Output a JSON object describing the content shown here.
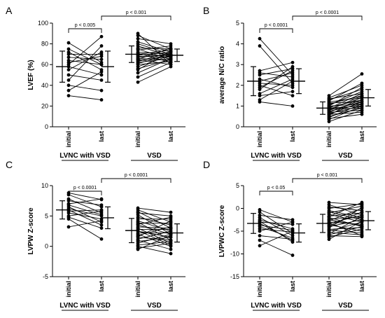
{
  "chart_data": [
    {
      "type": "scatter",
      "panel": "A",
      "ylabel": "LVEF (%)",
      "ylim": [
        0,
        100
      ],
      "yticks": [
        0,
        20,
        40,
        60,
        80,
        100
      ],
      "ytick_labels": [
        "0",
        "20",
        "40",
        "60",
        "80",
        "100"
      ],
      "categories": [
        "initial",
        "last",
        "initial",
        "last"
      ],
      "groups": [
        {
          "label": "LVNC with VSD"
        },
        {
          "label": "VSD"
        }
      ],
      "significance": [
        {
          "label": "p < 0.005"
        },
        {
          "label": "p < 0.001"
        }
      ],
      "group_stats": [
        {
          "initial": {
            "mean": 58,
            "sd": 15
          },
          "last": {
            "mean": 58,
            "sd": 15
          }
        },
        {
          "initial": {
            "mean": 70,
            "sd": 8
          },
          "last": {
            "mean": 69,
            "sd": 6
          }
        }
      ],
      "paired": [
        [
          [
            81,
            62
          ],
          [
            72,
            55
          ],
          [
            70,
            70
          ],
          [
            67,
            65
          ],
          [
            64,
            60
          ],
          [
            60,
            87
          ],
          [
            58,
            50
          ],
          [
            55,
            72
          ],
          [
            50,
            45
          ],
          [
            45,
            78
          ],
          [
            40,
            35
          ],
          [
            35,
            53
          ],
          [
            30,
            26
          ],
          [
            75,
            60
          ],
          [
            62,
            68
          ]
        ],
        [
          [
            90,
            60
          ],
          [
            88,
            75
          ],
          [
            85,
            80
          ],
          [
            82,
            72
          ],
          [
            80,
            70
          ],
          [
            78,
            68
          ],
          [
            76,
            75
          ],
          [
            75,
            65
          ],
          [
            74,
            78
          ],
          [
            72,
            70
          ],
          [
            71,
            62
          ],
          [
            70,
            74
          ],
          [
            70,
            68
          ],
          [
            69,
            72
          ],
          [
            68,
            67
          ],
          [
            67,
            70
          ],
          [
            66,
            64
          ],
          [
            65,
            76
          ],
          [
            65,
            60
          ],
          [
            64,
            68
          ],
          [
            63,
            72
          ],
          [
            62,
            66
          ],
          [
            61,
            70
          ],
          [
            60,
            63
          ],
          [
            58,
            69
          ],
          [
            56,
            65
          ],
          [
            55,
            73
          ],
          [
            52,
            66
          ],
          [
            48,
            62
          ],
          [
            43,
            58
          ]
        ]
      ]
    },
    {
      "type": "scatter",
      "panel": "B",
      "ylabel": "average N/C ratio",
      "ylim": [
        0,
        5
      ],
      "yticks": [
        0,
        1,
        2,
        3,
        4,
        5
      ],
      "ytick_labels": [
        "0",
        "1",
        "2",
        "3",
        "4",
        "5"
      ],
      "categories": [
        "initial",
        "last",
        "initial",
        "last"
      ],
      "groups": [
        {
          "label": "LVNC with VSD"
        },
        {
          "label": "VSD"
        }
      ],
      "significance": [
        {
          "label": "p < 0.0001"
        },
        {
          "label": "p < 0.0001"
        }
      ],
      "group_stats": [
        {
          "initial": {
            "mean": 2.2,
            "sd": 0.7
          },
          "last": {
            "mean": 2.2,
            "sd": 0.6
          }
        },
        {
          "initial": {
            "mean": 0.9,
            "sd": 0.3
          },
          "last": {
            "mean": 1.4,
            "sd": 0.4
          }
        }
      ],
      "paired": [
        [
          [
            4.25,
            2.5
          ],
          [
            3.9,
            2.1
          ],
          [
            2.7,
            3.1
          ],
          [
            2.5,
            2.8
          ],
          [
            2.3,
            1.9
          ],
          [
            2.2,
            2.6
          ],
          [
            2.1,
            2.0
          ],
          [
            2.0,
            1.5
          ],
          [
            1.8,
            2.9
          ],
          [
            1.6,
            2.3
          ],
          [
            1.5,
            1.7
          ],
          [
            1.3,
            2.2
          ],
          [
            1.2,
            1.0
          ],
          [
            2.6,
            2.4
          ],
          [
            1.9,
            2.7
          ]
        ],
        [
          [
            1.5,
            2.55
          ],
          [
            1.4,
            2.0
          ],
          [
            1.35,
            1.6
          ],
          [
            1.3,
            1.8
          ],
          [
            1.2,
            1.4
          ],
          [
            1.15,
            1.2
          ],
          [
            1.1,
            1.5
          ],
          [
            1.05,
            1.7
          ],
          [
            1.0,
            1.1
          ],
          [
            1.0,
            1.9
          ],
          [
            0.95,
            1.3
          ],
          [
            0.9,
            1.0
          ],
          [
            0.9,
            1.6
          ],
          [
            0.85,
            1.4
          ],
          [
            0.85,
            0.9
          ],
          [
            0.8,
            1.2
          ],
          [
            0.8,
            1.5
          ],
          [
            0.75,
            1.1
          ],
          [
            0.7,
            1.3
          ],
          [
            0.7,
            0.8
          ],
          [
            0.65,
            1.0
          ],
          [
            0.6,
            1.2
          ],
          [
            0.6,
            0.7
          ],
          [
            0.55,
            1.45
          ],
          [
            0.5,
            0.9
          ],
          [
            0.45,
            1.1
          ],
          [
            0.4,
            0.6
          ],
          [
            0.35,
            1.0
          ],
          [
            1.25,
            2.1
          ],
          [
            0.25,
            0.8
          ]
        ]
      ]
    },
    {
      "type": "scatter",
      "panel": "C",
      "ylabel": "LVPW Z-score",
      "ylim": [
        -5,
        10
      ],
      "yticks": [
        -5,
        0,
        5,
        10
      ],
      "ytick_labels": [
        "-5",
        "0",
        "5",
        "10"
      ],
      "categories": [
        "initial",
        "last",
        "initial",
        "last"
      ],
      "groups": [
        {
          "label": "LVNC with VSD"
        },
        {
          "label": "VSD"
        }
      ],
      "significance": [
        {
          "label": "p < 0.0001"
        },
        {
          "label": "p < 0.0001"
        }
      ],
      "group_stats": [
        {
          "initial": {
            "mean": 6.0,
            "sd": 1.5
          },
          "last": {
            "mean": 4.7,
            "sd": 1.8
          }
        },
        {
          "initial": {
            "mean": 2.6,
            "sd": 2.0
          },
          "last": {
            "mean": 2.2,
            "sd": 1.5
          }
        }
      ],
      "paired": [
        [
          [
            8.8,
            7.7
          ],
          [
            8.5,
            6.5
          ],
          [
            7.8,
            5.5
          ],
          [
            7.0,
            7.8
          ],
          [
            6.5,
            4.0
          ],
          [
            6.2,
            5.0
          ],
          [
            6.0,
            3.5
          ],
          [
            5.8,
            6.0
          ],
          [
            5.5,
            4.5
          ],
          [
            5.0,
            5.8
          ],
          [
            4.8,
            3.0
          ],
          [
            4.5,
            1.2
          ],
          [
            3.2,
            4.2
          ],
          [
            7.5,
            6.8
          ],
          [
            6.8,
            5.2
          ]
        ],
        [
          [
            6.3,
            5.6
          ],
          [
            6.0,
            4.0
          ],
          [
            5.7,
            3.0
          ],
          [
            5.5,
            5.0
          ],
          [
            5.2,
            2.0
          ],
          [
            4.8,
            3.5
          ],
          [
            4.5,
            4.5
          ],
          [
            4.2,
            2.5
          ],
          [
            4.0,
            1.0
          ],
          [
            3.8,
            3.8
          ],
          [
            3.5,
            2.0
          ],
          [
            3.2,
            3.0
          ],
          [
            3.0,
            0.5
          ],
          [
            2.8,
            2.8
          ],
          [
            2.5,
            1.5
          ],
          [
            2.2,
            2.2
          ],
          [
            2.0,
            0.0
          ],
          [
            1.8,
            3.2
          ],
          [
            1.5,
            1.0
          ],
          [
            1.2,
            2.5
          ],
          [
            1.0,
            -0.5
          ],
          [
            0.8,
            1.5
          ],
          [
            0.5,
            2.0
          ],
          [
            0.2,
            0.8
          ],
          [
            0.0,
            -1.2
          ],
          [
            -0.3,
            0.5
          ],
          [
            -0.5,
            1.8
          ],
          [
            3.6,
            4.8
          ],
          [
            2.6,
            0.2
          ],
          [
            1.6,
            4.2
          ]
        ]
      ]
    },
    {
      "type": "scatter",
      "panel": "D",
      "ylabel": "LVPWC Z-score",
      "ylim": [
        -15,
        5
      ],
      "yticks": [
        -15,
        -10,
        -5,
        0,
        5
      ],
      "ytick_labels": [
        "-15",
        "-10",
        "-5",
        "0",
        "5"
      ],
      "categories": [
        "initial",
        "last",
        "initial",
        "last"
      ],
      "groups": [
        {
          "label": "LVNC with VSD"
        },
        {
          "label": "VSD"
        }
      ],
      "significance": [
        {
          "label": "p < 0.05"
        },
        {
          "label": "p < 0.001"
        }
      ],
      "group_stats": [
        {
          "initial": {
            "mean": -3.3,
            "sd": 2.2
          },
          "last": {
            "mean": -5.4,
            "sd": 2.0
          }
        },
        {
          "initial": {
            "mean": -3.3,
            "sd": 2.0
          },
          "last": {
            "mean": -2.7,
            "sd": 2.0
          }
        }
      ],
      "paired": [
        [
          [
            -0.3,
            -3.0
          ],
          [
            -0.8,
            -5.5
          ],
          [
            -1.5,
            -2.5
          ],
          [
            -2.0,
            -6.0
          ],
          [
            -2.5,
            -4.5
          ],
          [
            -3.0,
            -3.5
          ],
          [
            -3.3,
            -7.0
          ],
          [
            -3.7,
            -4.8
          ],
          [
            -4.0,
            -6.5
          ],
          [
            -4.5,
            -5.2
          ],
          [
            -5.0,
            -3.0
          ],
          [
            -6.0,
            -6.8
          ],
          [
            -7.0,
            -10.3
          ],
          [
            -8.2,
            -5.0
          ],
          [
            -2.8,
            -7.4
          ]
        ],
        [
          [
            1.3,
            0.8
          ],
          [
            0.8,
            -1.5
          ],
          [
            0.3,
            -0.5
          ],
          [
            0.0,
            1.0
          ],
          [
            -0.5,
            -2.0
          ],
          [
            -1.0,
            0.5
          ],
          [
            -1.3,
            -3.0
          ],
          [
            -1.7,
            -1.0
          ],
          [
            -2.0,
            -4.0
          ],
          [
            -2.3,
            -2.0
          ],
          [
            -2.7,
            0.0
          ],
          [
            -3.0,
            -3.5
          ],
          [
            -3.3,
            -1.5
          ],
          [
            -3.6,
            -5.0
          ],
          [
            -4.0,
            -2.5
          ],
          [
            -4.3,
            0.2
          ],
          [
            -4.6,
            -4.2
          ],
          [
            -5.0,
            -3.0
          ],
          [
            -5.3,
            -5.8
          ],
          [
            -5.6,
            -1.8
          ],
          [
            -6.0,
            -6.2
          ],
          [
            -6.3,
            -4.5
          ],
          [
            -6.8,
            -2.8
          ],
          [
            -2.5,
            -3.8
          ],
          [
            -1.8,
            1.3
          ],
          [
            -3.8,
            -0.8
          ],
          [
            -4.8,
            -5.4
          ],
          [
            -0.8,
            -2.5
          ],
          [
            -5.8,
            -4.0
          ],
          [
            -3.2,
            -6.0
          ]
        ]
      ]
    }
  ]
}
